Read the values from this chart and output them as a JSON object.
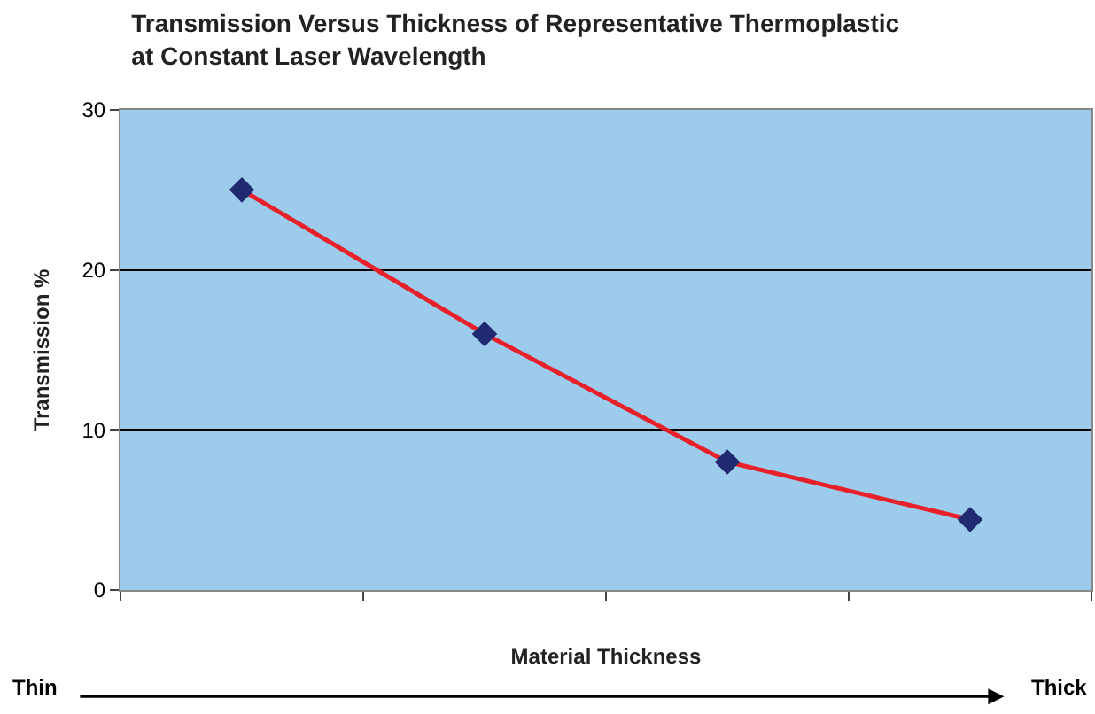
{
  "chart_data": {
    "type": "line",
    "title": "Transmission Versus Thickness of Representative Thermoplastic\nat Constant Laser Wavelength",
    "xlabel": "Material Thickness",
    "ylabel": "Transmission %",
    "categories": [
      null,
      null,
      null,
      null
    ],
    "series": [
      {
        "color": "#e8202a",
        "colors": [
          "#1f2a70",
          "#1f2a70",
          "#1f2a70",
          "#1f2a70"
        ],
        "values": [
          25,
          16,
          8,
          4.4
        ]
      }
    ],
    "ylim": [
      0,
      30
    ],
    "yticks": [
      0,
      10,
      20,
      30
    ],
    "grid": "y",
    "marker": "diamond",
    "line_style": "solid",
    "annotations": [
      "Thin",
      "Thick"
    ]
  }
}
